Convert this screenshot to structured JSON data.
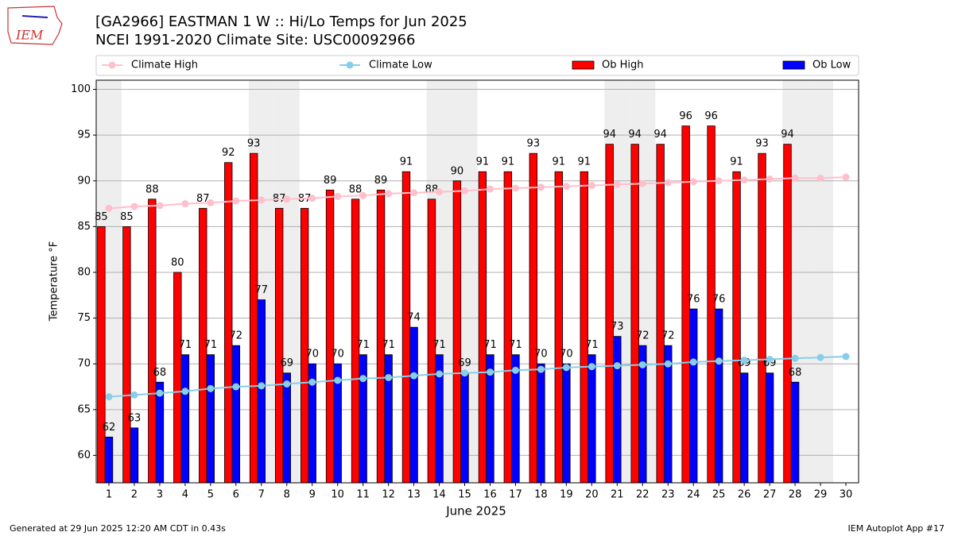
{
  "logo_text": "IEM",
  "footer": {
    "left": "Generated at 29 Jun 2025 12:20 AM CDT in 0.43s",
    "right": "IEM Autoplot App #17"
  },
  "chart_data": {
    "type": "bar",
    "title": "[GA2966] EASTMAN 1 W :: Hi/Lo Temps for Jun 2025",
    "subtitle": "NCEI 1991-2020 Climate Site: USC00092966",
    "x_label": "June 2025",
    "y_label": "Temperature °F",
    "categories": [
      "1",
      "2",
      "3",
      "4",
      "5",
      "6",
      "7",
      "8",
      "9",
      "10",
      "11",
      "12",
      "13",
      "14",
      "15",
      "16",
      "17",
      "18",
      "19",
      "20",
      "21",
      "22",
      "23",
      "24",
      "25",
      "26",
      "27",
      "28",
      "29",
      "30"
    ],
    "shaded_days": [
      "1",
      "7",
      "8",
      "14",
      "15",
      "21",
      "22",
      "28",
      "29"
    ],
    "shade_color": "#eeeeee",
    "series": [
      {
        "name": "Climate High",
        "style": "line",
        "color": "#ffc0cb",
        "values": [
          87.0,
          87.2,
          87.3,
          87.5,
          87.6,
          87.8,
          87.9,
          88.0,
          88.1,
          88.3,
          88.4,
          88.6,
          88.7,
          88.8,
          88.9,
          89.1,
          89.2,
          89.3,
          89.4,
          89.5,
          89.6,
          89.7,
          89.8,
          89.9,
          90.0,
          90.1,
          90.2,
          90.3,
          90.3,
          90.4
        ]
      },
      {
        "name": "Climate Low",
        "style": "line",
        "color": "#87ceeb",
        "values": [
          66.4,
          66.6,
          66.8,
          67.0,
          67.3,
          67.5,
          67.6,
          67.8,
          68.0,
          68.2,
          68.4,
          68.5,
          68.7,
          68.9,
          69.0,
          69.1,
          69.3,
          69.4,
          69.6,
          69.7,
          69.8,
          69.9,
          70.0,
          70.2,
          70.3,
          70.4,
          70.5,
          70.6,
          70.7,
          70.8
        ]
      },
      {
        "name": "Ob High",
        "style": "bar",
        "color": "#ff0000",
        "values": [
          85,
          85,
          88,
          80,
          87,
          92,
          93,
          87,
          87,
          89,
          88,
          89,
          91,
          88,
          90,
          91,
          91,
          93,
          91,
          91,
          94,
          94,
          94,
          96,
          96,
          91,
          93,
          94,
          null,
          null
        ]
      },
      {
        "name": "Ob Low",
        "style": "bar",
        "color": "#0000ff",
        "values": [
          62,
          63,
          68,
          71,
          71,
          72,
          77,
          69,
          70,
          70,
          71,
          71,
          74,
          71,
          69,
          71,
          71,
          70,
          70,
          71,
          73,
          72,
          72,
          76,
          76,
          69,
          69,
          68,
          null,
          null
        ]
      }
    ],
    "ylim": [
      57,
      101
    ],
    "yticks": [
      60,
      65,
      70,
      75,
      80,
      85,
      90,
      95,
      100
    ],
    "grid": true
  }
}
